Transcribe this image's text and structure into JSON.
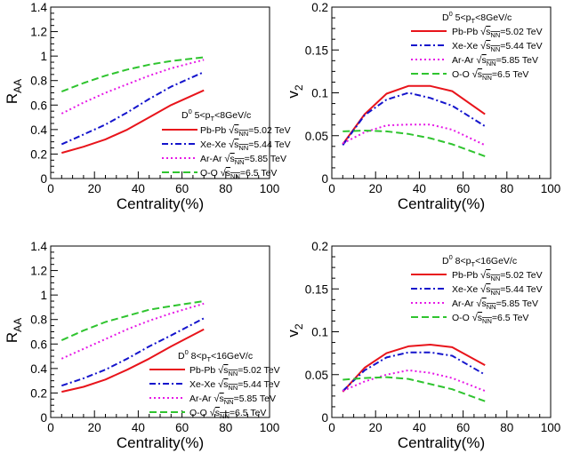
{
  "chart_data": [
    {
      "id": "raa-low",
      "type": "line",
      "xlabel": "Centrality(%)",
      "ylabel_main": "R",
      "ylabel_sub": "AA",
      "xlim": [
        0,
        100
      ],
      "ylim": [
        0,
        1.4
      ],
      "xticks": [
        0,
        20,
        40,
        60,
        80,
        100
      ],
      "xtick_labels": [
        "0",
        "20",
        "40",
        "60",
        "80",
        "100"
      ],
      "yticks": [
        0,
        0.2,
        0.4,
        0.6,
        0.8,
        1.0,
        1.2,
        1.4
      ],
      "ytick_labels": [
        "0",
        "0.2",
        "0.4",
        "0.6",
        "0.8",
        "1",
        "1.2",
        "1.4"
      ],
      "grid": false,
      "legend_position": "bottom-right",
      "legend_header": {
        "pre": "D",
        "sup": "0",
        "mid": " 5<p",
        "sub": "T",
        "post": "<8GeV/c"
      },
      "x": [
        5,
        15,
        25,
        35,
        45,
        55,
        70
      ],
      "series": [
        {
          "system": "Pb-Pb",
          "energy": "=5.02 TeV",
          "color": "#e8141b",
          "dash": "solid",
          "values": [
            0.21,
            0.26,
            0.32,
            0.4,
            0.5,
            0.6,
            0.72
          ]
        },
        {
          "system": "Xe-Xe",
          "energy": "=5.44 TeV",
          "color": "#1414cc",
          "dash": "dashdot",
          "values": [
            0.28,
            0.36,
            0.44,
            0.54,
            0.65,
            0.75,
            0.87
          ]
        },
        {
          "system": "Ar-Ar",
          "energy": "=5.85 TeV",
          "color": "#e619e6",
          "dash": "dot",
          "values": [
            0.53,
            0.62,
            0.7,
            0.77,
            0.84,
            0.9,
            0.97
          ]
        },
        {
          "system": "O-O",
          "energy": "=6.5 TeV",
          "color": "#2fc42f",
          "dash": "dash",
          "values": [
            0.71,
            0.78,
            0.84,
            0.89,
            0.93,
            0.96,
            0.99
          ]
        }
      ]
    },
    {
      "id": "v2-low",
      "type": "line",
      "xlabel": "Centrality(%)",
      "ylabel_main": "v",
      "ylabel_sub": "2",
      "xlim": [
        0,
        100
      ],
      "ylim": [
        0,
        0.2
      ],
      "xticks": [
        0,
        20,
        40,
        60,
        80,
        100
      ],
      "xtick_labels": [
        "0",
        "20",
        "40",
        "60",
        "80",
        "100"
      ],
      "yticks": [
        0,
        0.05,
        0.1,
        0.15,
        0.2
      ],
      "ytick_labels": [
        "0",
        "0.05",
        "0.1",
        "0.15",
        "0.2"
      ],
      "grid": false,
      "legend_position": "top-right",
      "legend_header": {
        "pre": "D",
        "sup": "0",
        "mid": " 5<p",
        "sub": "T",
        "post": "<8GeV/c"
      },
      "x": [
        5,
        15,
        25,
        35,
        45,
        55,
        70
      ],
      "series": [
        {
          "system": "Pb-Pb",
          "energy": "=5.02 TeV",
          "color": "#e8141b",
          "dash": "solid",
          "values": [
            0.04,
            0.075,
            0.099,
            0.108,
            0.108,
            0.102,
            0.075
          ]
        },
        {
          "system": "Xe-Xe",
          "energy": "=5.44 TeV",
          "color": "#1414cc",
          "dash": "dashdot",
          "values": [
            0.039,
            0.074,
            0.092,
            0.1,
            0.094,
            0.085,
            0.061
          ]
        },
        {
          "system": "Ar-Ar",
          "energy": "=5.85 TeV",
          "color": "#e619e6",
          "dash": "dot",
          "values": [
            0.041,
            0.054,
            0.062,
            0.063,
            0.063,
            0.057,
            0.039
          ]
        },
        {
          "system": "O-O",
          "energy": "=6.5 TeV",
          "color": "#2fc42f",
          "dash": "dash",
          "values": [
            0.055,
            0.056,
            0.055,
            0.052,
            0.047,
            0.04,
            0.026
          ]
        }
      ]
    },
    {
      "id": "raa-high",
      "type": "line",
      "xlabel": "Centrality(%)",
      "ylabel_main": "R",
      "ylabel_sub": "AA",
      "xlim": [
        0,
        100
      ],
      "ylim": [
        0,
        1.4
      ],
      "xticks": [
        0,
        20,
        40,
        60,
        80,
        100
      ],
      "xtick_labels": [
        "0",
        "20",
        "40",
        "60",
        "80",
        "100"
      ],
      "yticks": [
        0,
        0.2,
        0.4,
        0.6,
        0.8,
        1.0,
        1.2,
        1.4
      ],
      "ytick_labels": [
        "0",
        "0.2",
        "0.4",
        "0.6",
        "0.8",
        "1",
        "1.2",
        "1.4"
      ],
      "grid": false,
      "legend_position": "bottom-right",
      "legend_header": {
        "pre": "D",
        "sup": "0",
        "mid": " 8<p",
        "sub": "T",
        "post": "<16GeV/c"
      },
      "x": [
        5,
        15,
        25,
        35,
        45,
        55,
        70
      ],
      "series": [
        {
          "system": "Pb-Pb",
          "energy": "=5.02 TeV",
          "color": "#e8141b",
          "dash": "solid",
          "values": [
            0.21,
            0.25,
            0.31,
            0.39,
            0.48,
            0.58,
            0.72
          ]
        },
        {
          "system": "Xe-Xe",
          "energy": "=5.44 TeV",
          "color": "#1414cc",
          "dash": "dashdot",
          "values": [
            0.26,
            0.32,
            0.39,
            0.48,
            0.58,
            0.67,
            0.81
          ]
        },
        {
          "system": "Ar-Ar",
          "energy": "=5.85 TeV",
          "color": "#e619e6",
          "dash": "dot",
          "values": [
            0.48,
            0.56,
            0.64,
            0.72,
            0.79,
            0.85,
            0.93
          ]
        },
        {
          "system": "O-O",
          "energy": "=6.5 TeV",
          "color": "#2fc42f",
          "dash": "dash",
          "values": [
            0.63,
            0.71,
            0.78,
            0.83,
            0.88,
            0.91,
            0.95
          ]
        }
      ]
    },
    {
      "id": "v2-high",
      "type": "line",
      "xlabel": "Centrality(%)",
      "ylabel_main": "v",
      "ylabel_sub": "2",
      "xlim": [
        0,
        100
      ],
      "ylim": [
        0,
        0.2
      ],
      "xticks": [
        0,
        20,
        40,
        60,
        80,
        100
      ],
      "xtick_labels": [
        "0",
        "20",
        "40",
        "60",
        "80",
        "100"
      ],
      "yticks": [
        0,
        0.05,
        0.1,
        0.15,
        0.2
      ],
      "ytick_labels": [
        "0",
        "0.05",
        "0.1",
        "0.15",
        "0.2"
      ],
      "grid": false,
      "legend_position": "top-right",
      "legend_header": {
        "pre": "D",
        "sup": "0",
        "mid": " 8<p",
        "sub": "T",
        "post": "<16GeV/c"
      },
      "x": [
        5,
        15,
        25,
        35,
        45,
        55,
        70
      ],
      "series": [
        {
          "system": "Pb-Pb",
          "energy": "=5.02 TeV",
          "color": "#e8141b",
          "dash": "solid",
          "values": [
            0.03,
            0.058,
            0.075,
            0.083,
            0.085,
            0.082,
            0.061
          ]
        },
        {
          "system": "Xe-Xe",
          "energy": "=5.44 TeV",
          "color": "#1414cc",
          "dash": "dashdot",
          "values": [
            0.031,
            0.055,
            0.07,
            0.076,
            0.076,
            0.072,
            0.05
          ]
        },
        {
          "system": "Ar-Ar",
          "energy": "=5.85 TeV",
          "color": "#e619e6",
          "dash": "dot",
          "values": [
            0.031,
            0.042,
            0.05,
            0.055,
            0.052,
            0.046,
            0.031
          ]
        },
        {
          "system": "O-O",
          "energy": "=6.5 TeV",
          "color": "#2fc42f",
          "dash": "dash",
          "values": [
            0.044,
            0.046,
            0.047,
            0.045,
            0.039,
            0.033,
            0.019
          ]
        }
      ]
    }
  ]
}
